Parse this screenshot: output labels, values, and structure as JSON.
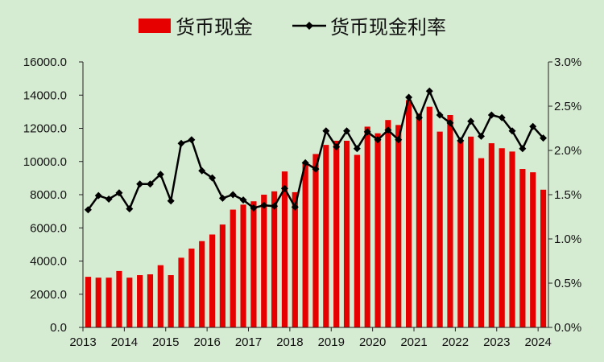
{
  "chart_data": {
    "type": "bar",
    "legend_position": "top",
    "grid": false,
    "colors": {
      "background": "#d6ecd2",
      "bar": "#e60000",
      "line": "#000000"
    },
    "x_tick_labels": [
      "2013",
      "2014",
      "2015",
      "2016",
      "2017",
      "2018",
      "2019",
      "2020",
      "2021",
      "2022",
      "2023",
      "2024"
    ],
    "y_left": {
      "ylim": [
        0,
        16000
      ],
      "tick_values": [
        0,
        2000,
        4000,
        6000,
        8000,
        10000,
        12000,
        14000,
        16000
      ],
      "tick_labels": [
        "0.0",
        "2000.0",
        "4000.0",
        "6000.0",
        "8000.0",
        "10000.0",
        "12000.0",
        "14000.0",
        "16000.0"
      ]
    },
    "y_right": {
      "ylim": [
        0,
        3.0
      ],
      "tick_values": [
        0,
        0.5,
        1.0,
        1.5,
        2.0,
        2.5,
        3.0
      ],
      "tick_labels": [
        "0.0%",
        "0.5%",
        "1.0%",
        "1.5%",
        "2.0%",
        "2.5%",
        "3.0%"
      ]
    },
    "x": [
      "2013Q1",
      "2013Q2",
      "2013Q3",
      "2013Q4",
      "2014Q1",
      "2014Q2",
      "2014Q3",
      "2014Q4",
      "2015Q1",
      "2015Q2",
      "2015Q3",
      "2015Q4",
      "2016Q1",
      "2016Q2",
      "2016Q3",
      "2016Q4",
      "2017Q1",
      "2017Q2",
      "2017Q3",
      "2017Q4",
      "2018Q1",
      "2018Q2",
      "2018Q3",
      "2018Q4",
      "2019Q1",
      "2019Q2",
      "2019Q3",
      "2019Q4",
      "2020Q1",
      "2020Q2",
      "2020Q3",
      "2020Q4",
      "2021Q1",
      "2021Q2",
      "2021Q3",
      "2021Q4",
      "2022Q1",
      "2022Q2",
      "2022Q3",
      "2022Q4",
      "2023Q1",
      "2023Q2",
      "2023Q3",
      "2023Q4",
      "2024Q1"
    ],
    "series": [
      {
        "name": "货币现金",
        "type": "bar",
        "axis": "left",
        "values": [
          3050,
          3000,
          3000,
          3400,
          3000,
          3150,
          3200,
          3750,
          3150,
          4200,
          4750,
          5200,
          5600,
          6200,
          7100,
          7400,
          7600,
          8000,
          8200,
          9400,
          8150,
          9950,
          10450,
          11000,
          11250,
          11250,
          10400,
          12100,
          11700,
          12500,
          12200,
          13700,
          12900,
          13300,
          11800,
          12800,
          11300,
          11500,
          10200,
          11100,
          10800,
          10600,
          9550,
          9350,
          8300
        ]
      },
      {
        "name": "货币现金利率",
        "type": "line",
        "axis": "right",
        "values": [
          1.33,
          1.49,
          1.45,
          1.52,
          1.34,
          1.62,
          1.62,
          1.73,
          1.43,
          2.08,
          2.12,
          1.77,
          1.69,
          1.46,
          1.5,
          1.44,
          1.35,
          1.38,
          1.37,
          1.57,
          1.36,
          1.86,
          1.79,
          2.22,
          2.04,
          2.22,
          2.02,
          2.21,
          2.12,
          2.23,
          2.12,
          2.6,
          2.37,
          2.67,
          2.4,
          2.31,
          2.11,
          2.33,
          2.16,
          2.4,
          2.37,
          2.22,
          2.02,
          2.27,
          2.14
        ]
      }
    ]
  }
}
